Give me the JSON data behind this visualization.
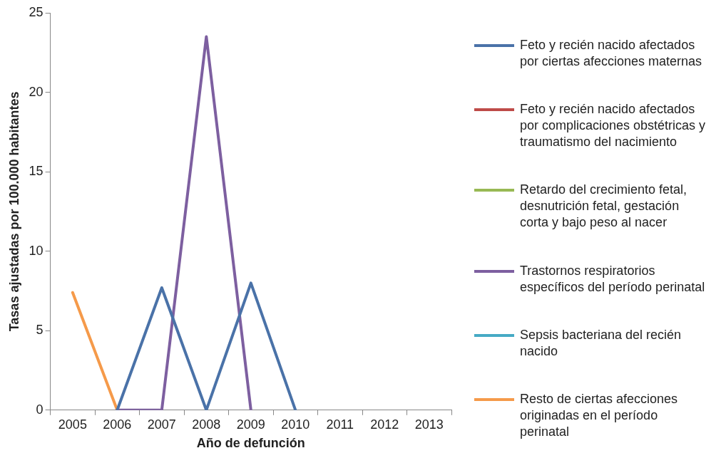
{
  "chart_data": {
    "type": "line",
    "xlabel": "Año de defunción",
    "ylabel": "Tasas ajustadas por 100.000 habitantes",
    "categories": [
      "2005",
      "2006",
      "2007",
      "2008",
      "2009",
      "2010",
      "2011",
      "2012",
      "2013"
    ],
    "ylim": [
      0,
      25
    ],
    "yticks": [
      0,
      5,
      10,
      15,
      20,
      25
    ],
    "grid": false,
    "legend": "right",
    "marker": "none",
    "line_style": "solid",
    "series": [
      {
        "name": "Feto y recién nacido afectados por ciertas afecciones maternas",
        "color": "#4a72a8",
        "values": [
          null,
          0,
          7.7,
          0,
          8.0,
          0,
          null,
          null,
          null
        ]
      },
      {
        "name": "Feto y recién nacido afectados por complicaciones obstétricas y traumatismo del nacimiento",
        "color": "#be4b48",
        "values": [
          null,
          null,
          null,
          null,
          null,
          null,
          null,
          null,
          null
        ]
      },
      {
        "name": "Retardo del crecimiento fetal, desnutrición fetal, gestación corta y bajo peso al nacer",
        "color": "#98b954",
        "values": [
          null,
          null,
          null,
          null,
          null,
          null,
          null,
          null,
          null
        ]
      },
      {
        "name": "Trastornos respiratorios específicos del período perinatal",
        "color": "#7d5fa0",
        "values": [
          null,
          0,
          0,
          23.5,
          0,
          null,
          null,
          null,
          null
        ]
      },
      {
        "name": "Sepsis bacteriana del recién nacido",
        "color": "#46aac5",
        "values": [
          null,
          null,
          null,
          null,
          null,
          null,
          null,
          null,
          null
        ]
      },
      {
        "name": "Resto de ciertas afecciones originadas en el período perinatal",
        "color": "#f59a4a",
        "values": [
          7.4,
          0,
          null,
          null,
          null,
          null,
          null,
          null,
          null
        ]
      }
    ]
  }
}
